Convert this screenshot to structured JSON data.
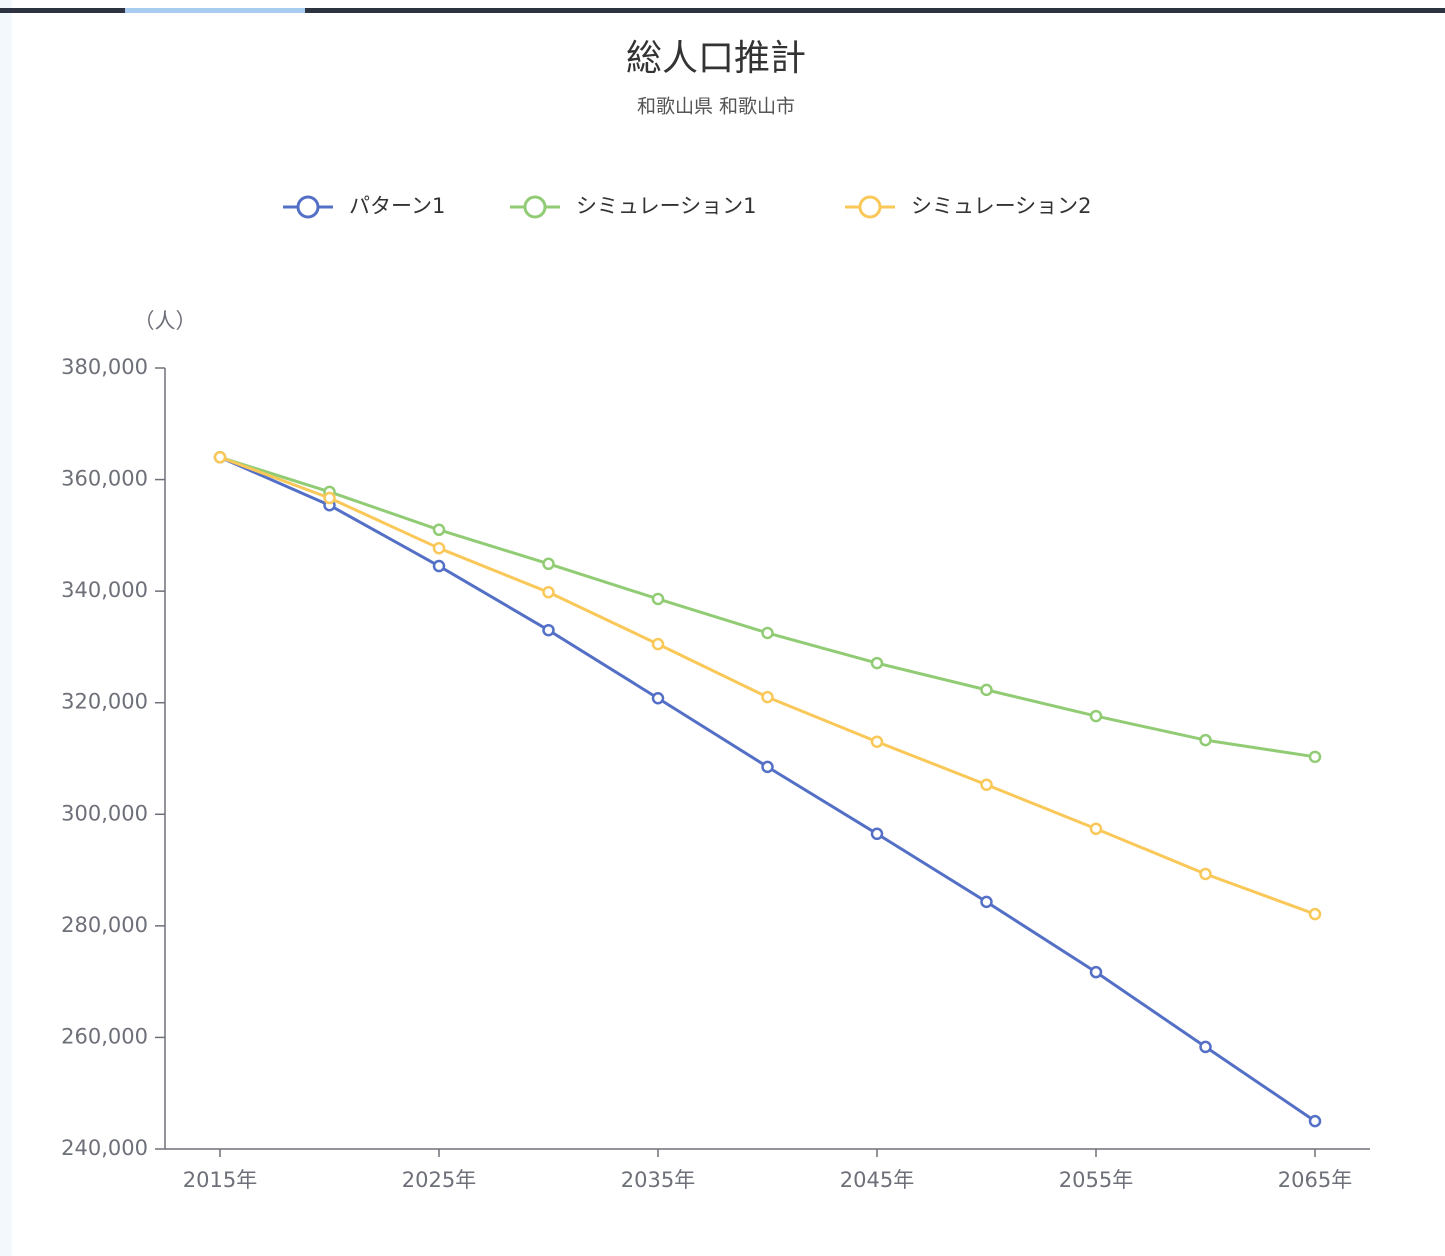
{
  "chart_data": {
    "type": "line",
    "title": "総人口推計",
    "subtitle": "和歌山県 和歌山市",
    "y_axis_label": "（人）",
    "categories": [
      "2015年",
      null,
      "2025年",
      null,
      "2035年",
      null,
      "2045年",
      null,
      "2055年",
      null,
      "2065年"
    ],
    "series": [
      {
        "name": "パターン1",
        "color": "#5470c6",
        "values": [
          364000,
          355400,
          344500,
          333000,
          320800,
          308500,
          296500,
          284300,
          271700,
          258300,
          245000
        ]
      },
      {
        "name": "シミュレーション1",
        "color": "#91cc75",
        "values": [
          364000,
          357800,
          351000,
          344900,
          338600,
          332500,
          327100,
          322300,
          317600,
          313300,
          310300
        ]
      },
      {
        "name": "シミュレーション2",
        "color": "#fac858",
        "values": [
          364000,
          356700,
          347700,
          339800,
          330500,
          321000,
          313000,
          305300,
          297400,
          289300,
          282100
        ]
      }
    ],
    "ylim": [
      240000,
      380000
    ],
    "yticks": [
      {
        "value": 240000,
        "label": "240,000"
      },
      {
        "value": 260000,
        "label": "260,000"
      },
      {
        "value": 280000,
        "label": "280,000"
      },
      {
        "value": 300000,
        "label": "300,000"
      },
      {
        "value": 320000,
        "label": "320,000"
      },
      {
        "value": 340000,
        "label": "340,000"
      },
      {
        "value": 360000,
        "label": "360,000"
      },
      {
        "value": 380000,
        "label": "380,000"
      }
    ],
    "legend": "top",
    "grid": false
  }
}
